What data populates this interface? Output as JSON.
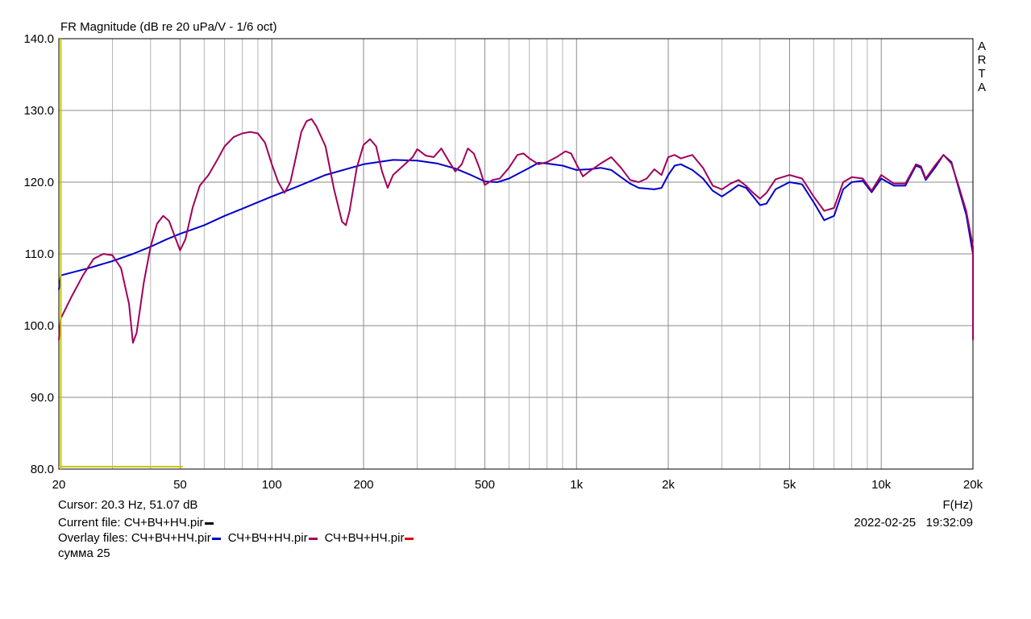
{
  "title": "FR Magnitude (dB re 20 uPa/V - 1/6 oct)",
  "watermark": "ARTA",
  "xlabel": "F(Hz)",
  "cursor_text": "Cursor: 20.3 Hz, 51.07 dB",
  "current_file_label": "Current file: СЧ+ВЧ+НЧ.pir",
  "current_file_color": "#000000",
  "overlay_label": "Overlay files:",
  "overlay_files": [
    {
      "name": "СЧ+ВЧ+НЧ.pir",
      "color": "#0000cc"
    },
    {
      "name": "СЧ+ВЧ+НЧ.pir",
      "color": "#a0005a"
    },
    {
      "name": "СЧ+ВЧ+НЧ.pir",
      "color": "#e00000"
    }
  ],
  "note": "сумма 25",
  "datetime": "2022-02-25   19:32:09",
  "chart_data": {
    "type": "line",
    "title": "FR Magnitude (dB re 20 uPa/V - 1/6 oct)",
    "xlabel": "F(Hz)",
    "ylabel": "",
    "xscale": "log",
    "xlim": [
      20,
      20000
    ],
    "ylim": [
      80,
      140
    ],
    "grid": true,
    "x_ticks": [
      {
        "value": 20,
        "label": "20"
      },
      {
        "value": 50,
        "label": "50"
      },
      {
        "value": 100,
        "label": "100"
      },
      {
        "value": 200,
        "label": "200"
      },
      {
        "value": 500,
        "label": "500"
      },
      {
        "value": 1000,
        "label": "1k"
      },
      {
        "value": 2000,
        "label": "2k"
      },
      {
        "value": 5000,
        "label": "5k"
      },
      {
        "value": 10000,
        "label": "10k"
      },
      {
        "value": 20000,
        "label": "20k"
      }
    ],
    "y_ticks": [
      {
        "value": 80,
        "label": "80.0"
      },
      {
        "value": 90,
        "label": "90.0"
      },
      {
        "value": 100,
        "label": "100.0"
      },
      {
        "value": 110,
        "label": "110.0"
      },
      {
        "value": 120,
        "label": "120.0"
      },
      {
        "value": 130,
        "label": "130.0"
      },
      {
        "value": 140,
        "label": "140.0"
      }
    ],
    "cursor": {
      "freq": 20.3,
      "db": 51.07,
      "color": "#c8c800"
    },
    "series": [
      {
        "color": "#0000cc",
        "points": [
          [
            20,
            105
          ],
          [
            20.3,
            107
          ],
          [
            25,
            108
          ],
          [
            30,
            109
          ],
          [
            35,
            110
          ],
          [
            40,
            111
          ],
          [
            45,
            112
          ],
          [
            50,
            112.8
          ],
          [
            60,
            114
          ],
          [
            70,
            115.3
          ],
          [
            80,
            116.3
          ],
          [
            100,
            118
          ],
          [
            120,
            119.3
          ],
          [
            150,
            121
          ],
          [
            200,
            122.5
          ],
          [
            250,
            123.1
          ],
          [
            300,
            123
          ],
          [
            350,
            122.6
          ],
          [
            400,
            121.9
          ],
          [
            450,
            121
          ],
          [
            500,
            120.1
          ],
          [
            550,
            120
          ],
          [
            600,
            120.5
          ],
          [
            700,
            122
          ],
          [
            750,
            122.7
          ],
          [
            800,
            122.6
          ],
          [
            900,
            122.3
          ],
          [
            1000,
            121.7
          ],
          [
            1100,
            121.8
          ],
          [
            1200,
            122
          ],
          [
            1300,
            121.7
          ],
          [
            1400,
            120.7
          ],
          [
            1500,
            119.8
          ],
          [
            1600,
            119.2
          ],
          [
            1800,
            119
          ],
          [
            1900,
            119.2
          ],
          [
            2000,
            121
          ],
          [
            2100,
            122.3
          ],
          [
            2200,
            122.5
          ],
          [
            2400,
            121.7
          ],
          [
            2600,
            120.5
          ],
          [
            2800,
            118.8
          ],
          [
            3000,
            118
          ],
          [
            3200,
            118.8
          ],
          [
            3400,
            119.6
          ],
          [
            3600,
            119.2
          ],
          [
            3800,
            118
          ],
          [
            4000,
            116.8
          ],
          [
            4200,
            117
          ],
          [
            4500,
            119
          ],
          [
            5000,
            120
          ],
          [
            5500,
            119.7
          ],
          [
            6000,
            117.2
          ],
          [
            6500,
            114.7
          ],
          [
            7000,
            115.3
          ],
          [
            7500,
            119
          ],
          [
            8000,
            120
          ],
          [
            8700,
            120.2
          ],
          [
            9300,
            118.6
          ],
          [
            10000,
            120.5
          ],
          [
            11000,
            119.5
          ],
          [
            12000,
            119.5
          ],
          [
            13000,
            122.3
          ],
          [
            13500,
            122
          ],
          [
            14000,
            120.3
          ],
          [
            15000,
            122
          ],
          [
            16000,
            123.8
          ],
          [
            17000,
            122.8
          ],
          [
            18000,
            119
          ],
          [
            19000,
            115.5
          ],
          [
            20000,
            110
          ],
          [
            20000,
            98
          ]
        ]
      },
      {
        "color": "#a0005a",
        "points": [
          [
            20,
            98
          ],
          [
            20.3,
            101
          ],
          [
            22,
            104
          ],
          [
            24,
            107
          ],
          [
            26,
            109.3
          ],
          [
            28,
            110
          ],
          [
            30,
            109.8
          ],
          [
            32,
            108
          ],
          [
            34,
            103
          ],
          [
            35,
            97.6
          ],
          [
            36,
            99
          ],
          [
            38,
            106
          ],
          [
            40,
            111
          ],
          [
            42,
            114.2
          ],
          [
            44,
            115.3
          ],
          [
            46,
            114.6
          ],
          [
            48,
            112.5
          ],
          [
            50,
            110.5
          ],
          [
            52,
            112
          ],
          [
            55,
            116.5
          ],
          [
            58,
            119.5
          ],
          [
            62,
            121
          ],
          [
            66,
            123
          ],
          [
            70,
            125
          ],
          [
            75,
            126.3
          ],
          [
            80,
            126.8
          ],
          [
            85,
            127
          ],
          [
            90,
            126.8
          ],
          [
            95,
            125.5
          ],
          [
            100,
            122.5
          ],
          [
            105,
            120
          ],
          [
            110,
            118.5
          ],
          [
            115,
            120
          ],
          [
            120,
            123.5
          ],
          [
            125,
            127
          ],
          [
            130,
            128.5
          ],
          [
            135,
            128.8
          ],
          [
            140,
            127.8
          ],
          [
            150,
            125
          ],
          [
            160,
            119
          ],
          [
            170,
            114.5
          ],
          [
            175,
            114
          ],
          [
            180,
            116
          ],
          [
            190,
            122
          ],
          [
            200,
            125.2
          ],
          [
            210,
            126
          ],
          [
            220,
            125
          ],
          [
            230,
            121.5
          ],
          [
            240,
            119.2
          ],
          [
            250,
            121
          ],
          [
            270,
            122.3
          ],
          [
            290,
            123.5
          ],
          [
            300,
            124.6
          ],
          [
            320,
            123.7
          ],
          [
            340,
            123.5
          ],
          [
            360,
            124.7
          ],
          [
            380,
            123
          ],
          [
            400,
            121.5
          ],
          [
            420,
            122.5
          ],
          [
            440,
            124.7
          ],
          [
            460,
            124
          ],
          [
            480,
            122
          ],
          [
            500,
            119.6
          ],
          [
            530,
            120.3
          ],
          [
            560,
            120.5
          ],
          [
            600,
            122
          ],
          [
            640,
            123.8
          ],
          [
            670,
            124
          ],
          [
            700,
            123.3
          ],
          [
            750,
            122.5
          ],
          [
            800,
            122.8
          ],
          [
            860,
            123.5
          ],
          [
            920,
            124.3
          ],
          [
            960,
            124
          ],
          [
            1000,
            122.5
          ],
          [
            1050,
            120.8
          ],
          [
            1100,
            121.5
          ],
          [
            1200,
            122.6
          ],
          [
            1300,
            123.5
          ],
          [
            1400,
            122
          ],
          [
            1500,
            120.3
          ],
          [
            1600,
            120
          ],
          [
            1700,
            120.5
          ],
          [
            1800,
            121.8
          ],
          [
            1900,
            121
          ],
          [
            2000,
            123.5
          ],
          [
            2100,
            123.8
          ],
          [
            2200,
            123.3
          ],
          [
            2400,
            123.8
          ],
          [
            2600,
            122
          ],
          [
            2800,
            119.5
          ],
          [
            3000,
            119
          ],
          [
            3200,
            119.8
          ],
          [
            3400,
            120.3
          ],
          [
            3600,
            119.5
          ],
          [
            3800,
            118.5
          ],
          [
            4000,
            117.7
          ],
          [
            4200,
            118.5
          ],
          [
            4500,
            120.4
          ],
          [
            5000,
            121
          ],
          [
            5500,
            120.5
          ],
          [
            6000,
            118
          ],
          [
            6500,
            116
          ],
          [
            7000,
            116.4
          ],
          [
            7500,
            120
          ],
          [
            8000,
            120.7
          ],
          [
            8700,
            120.5
          ],
          [
            9300,
            118.8
          ],
          [
            10000,
            121
          ],
          [
            11000,
            119.8
          ],
          [
            12000,
            119.8
          ],
          [
            13000,
            122.5
          ],
          [
            13500,
            122.2
          ],
          [
            14000,
            120.5
          ],
          [
            15000,
            122.3
          ],
          [
            16000,
            123.8
          ],
          [
            17000,
            122.6
          ],
          [
            18000,
            119.3
          ],
          [
            19000,
            116
          ],
          [
            20000,
            111
          ],
          [
            20000,
            98
          ]
        ]
      }
    ]
  }
}
